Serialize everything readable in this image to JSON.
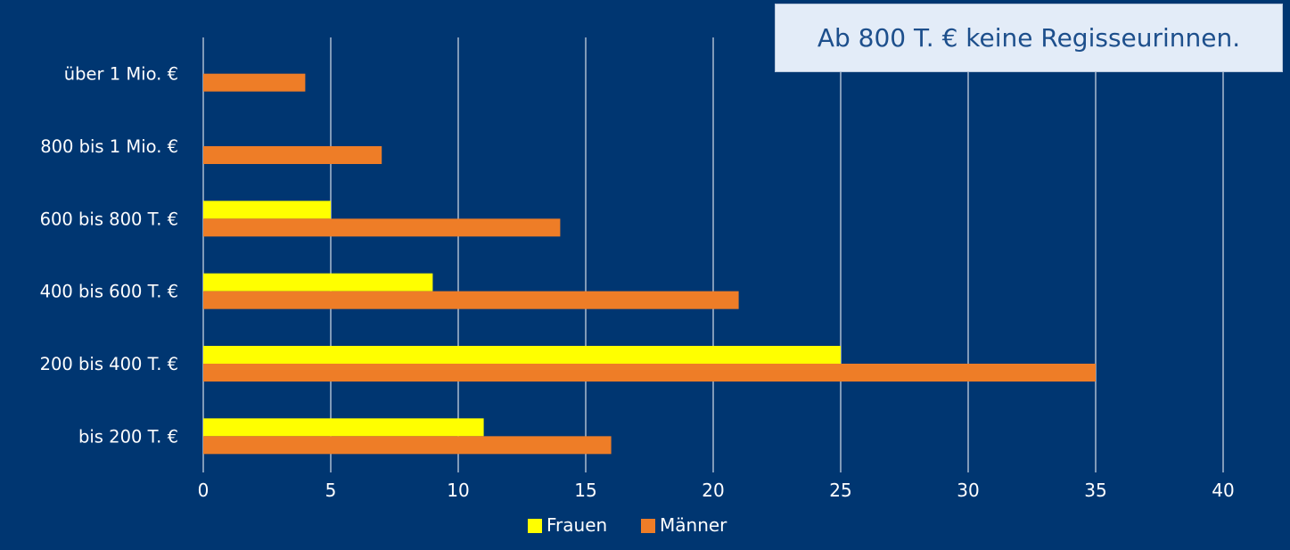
{
  "colors": {
    "background": "#003671",
    "frauen": "#ffff00",
    "maenner": "#ee7d27",
    "grid": "#ffffff"
  },
  "callout": "Ab 800 T. € keine Regisseurinnen.",
  "chart_data": {
    "type": "bar",
    "orientation": "horizontal",
    "categories": [
      "über 1 Mio. €",
      "800 bis 1 Mio. €",
      "600 bis 800 T. €",
      "400 bis 600 T. €",
      "200 bis 400 T. €",
      "bis 200 T. €"
    ],
    "series": [
      {
        "name": "Frauen",
        "values": [
          0,
          0,
          5,
          9,
          25,
          11
        ]
      },
      {
        "name": "Männer",
        "values": [
          4,
          7,
          14,
          21,
          35,
          16
        ]
      }
    ],
    "xlim": [
      0,
      40
    ],
    "xticks": [
      0,
      5,
      10,
      15,
      20,
      25,
      30,
      35,
      40
    ],
    "grid": "vertical",
    "legend": "bottom-center",
    "title": "",
    "xlabel": "",
    "ylabel": ""
  }
}
